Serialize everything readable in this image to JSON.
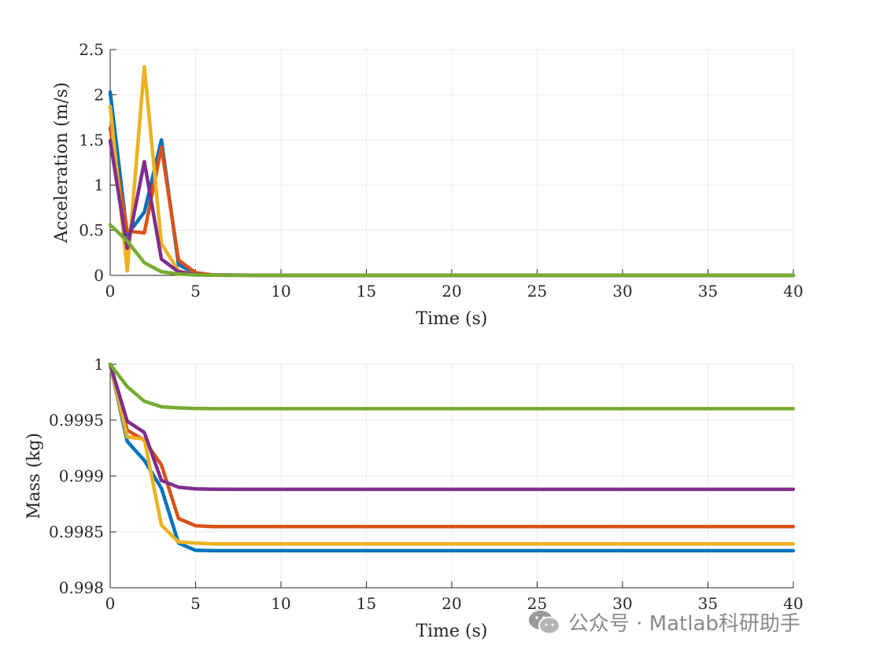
{
  "chart_data": [
    {
      "type": "line",
      "xlabel": "Time (s)",
      "ylabel": "Acceleration (m/s)",
      "xlim": [
        0,
        40
      ],
      "ylim": [
        0,
        2.5
      ],
      "xticks": [
        0,
        5,
        10,
        15,
        20,
        25,
        30,
        35,
        40
      ],
      "xtick_labels": [
        "0",
        "5",
        "10",
        "15",
        "20",
        "25",
        "30",
        "35",
        "40"
      ],
      "yticks": [
        0,
        0.5,
        1,
        1.5,
        2,
        2.5
      ],
      "ytick_labels": [
        "0",
        "0.5",
        "1",
        "1.5",
        "2",
        "2.5"
      ],
      "grid": true,
      "series": [
        {
          "color": "#0072BD",
          "x": [
            0,
            1,
            2,
            3,
            4,
            5,
            6,
            8,
            10,
            40
          ],
          "y": [
            2.03,
            0.45,
            0.7,
            1.5,
            0.12,
            0.02,
            0.005,
            0.002,
            0,
            0
          ]
        },
        {
          "color": "#D95319",
          "x": [
            0,
            1,
            2,
            3,
            4,
            5,
            6,
            8,
            10,
            40
          ],
          "y": [
            1.63,
            0.49,
            0.47,
            1.42,
            0.17,
            0.03,
            0.005,
            0.002,
            0,
            0
          ]
        },
        {
          "color": "#EDB120",
          "x": [
            0,
            1,
            2,
            3,
            4,
            5,
            6,
            8,
            10,
            40
          ],
          "y": [
            1.87,
            0.05,
            2.31,
            0.35,
            0.05,
            0.01,
            0.003,
            0.001,
            0,
            0
          ]
        },
        {
          "color": "#7E2F8E",
          "x": [
            0,
            1,
            2,
            3,
            4,
            5,
            6,
            8,
            10,
            40
          ],
          "y": [
            1.49,
            0.3,
            1.26,
            0.18,
            0.04,
            0.01,
            0.003,
            0.001,
            0,
            0
          ]
        },
        {
          "color": "#77AC30",
          "x": [
            0,
            1,
            2,
            3,
            4,
            5,
            6,
            8,
            10,
            40
          ],
          "y": [
            0.56,
            0.38,
            0.14,
            0.04,
            0.015,
            0.005,
            0.002,
            0.001,
            0,
            0
          ]
        }
      ]
    },
    {
      "type": "line",
      "xlabel": "Time (s)",
      "ylabel": "Mass (kg)",
      "xlim": [
        0,
        40
      ],
      "ylim": [
        0.998,
        1
      ],
      "xticks": [
        0,
        5,
        10,
        15,
        20,
        25,
        30,
        35,
        40
      ],
      "xtick_labels": [
        "0",
        "5",
        "10",
        "15",
        "20",
        "25",
        "30",
        "35",
        "40"
      ],
      "yticks": [
        0.998,
        0.9985,
        0.999,
        0.9995,
        1
      ],
      "ytick_labels": [
        "0.998",
        "0.9985",
        "0.999",
        "0.9995",
        "1"
      ],
      "grid": true,
      "series": [
        {
          "color": "#0072BD",
          "x": [
            0,
            1,
            2,
            3,
            4,
            5,
            6,
            8,
            40
          ],
          "y": [
            1.0,
            0.99931,
            0.99914,
            0.99889,
            0.9984,
            0.998335,
            0.998332,
            0.998332,
            0.998332
          ]
        },
        {
          "color": "#D95319",
          "x": [
            0,
            1,
            2,
            3,
            4,
            5,
            6,
            8,
            40
          ],
          "y": [
            1.0,
            0.99941,
            0.99932,
            0.9991,
            0.99862,
            0.998555,
            0.998548,
            0.998548,
            0.998548
          ]
        },
        {
          "color": "#EDB120",
          "x": [
            0,
            1,
            2,
            3,
            4,
            5,
            6,
            8,
            40
          ],
          "y": [
            1.0,
            0.99935,
            0.99933,
            0.99856,
            0.99841,
            0.9984,
            0.998393,
            0.998392,
            0.998392
          ]
        },
        {
          "color": "#7E2F8E",
          "x": [
            0,
            1,
            2,
            3,
            4,
            5,
            6,
            8,
            40
          ],
          "y": [
            1.0,
            0.99949,
            0.99939,
            0.99896,
            0.9989,
            0.998885,
            0.998882,
            0.998881,
            0.998881
          ]
        },
        {
          "color": "#77AC30",
          "x": [
            0,
            1,
            2,
            3,
            4,
            5,
            6,
            8,
            40
          ],
          "y": [
            1.0,
            0.9998,
            0.99967,
            0.99962,
            0.99961,
            0.999605,
            0.999603,
            0.999603,
            0.999603
          ]
        }
      ]
    }
  ],
  "watermark": {
    "text": "公众号 · Matlab科研助手",
    "icon": "wechat-icon"
  }
}
